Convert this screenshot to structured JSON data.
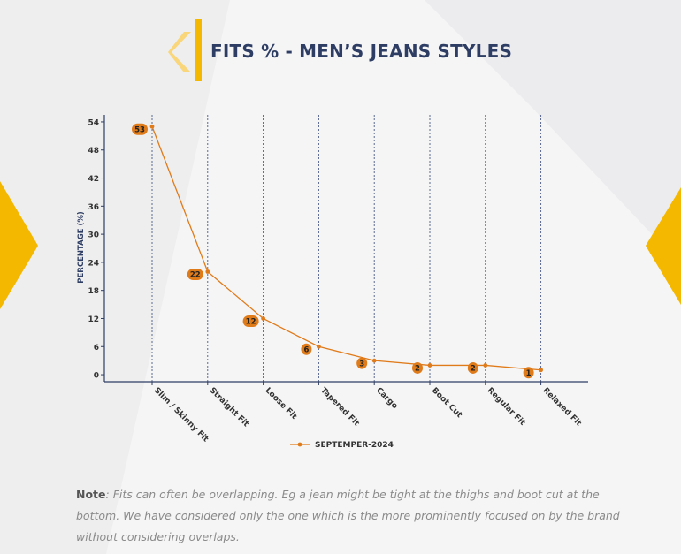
{
  "header": {
    "title": "FITS % - MEN’S JEANS STYLES"
  },
  "note": {
    "label": "Note",
    "text": ": Fits can often be overlapping. Eg a jean might be tight at the thighs and boot cut at the bottom. We have considered only the one which is the more prominently focused on by the brand without considering overlaps."
  },
  "colors": {
    "accent": "#f5b800",
    "line": "#e07b1a",
    "axis": "#2e3d63",
    "label_bg": "#e07b1a"
  },
  "chart_data": {
    "type": "line",
    "categories": [
      "Slim / Skinny Fit",
      "Straight Fit",
      "Loose Fit",
      "Tapered Fit",
      "Cargo",
      "Boot Cut",
      "Regular Fit",
      "Relaxed Fit"
    ],
    "series": [
      {
        "name": "SEPTEMPER-2024",
        "values": [
          53,
          22,
          12,
          6,
          3,
          2,
          2,
          1
        ]
      }
    ],
    "ylabel": "PERCENTAGE (%)",
    "xlabel": "",
    "yticks": [
      0,
      6,
      12,
      18,
      24,
      30,
      36,
      42,
      48,
      54
    ],
    "ylim": [
      -1.5,
      55.5
    ],
    "grid": "vertical dashed",
    "legend": "bottom-center"
  }
}
